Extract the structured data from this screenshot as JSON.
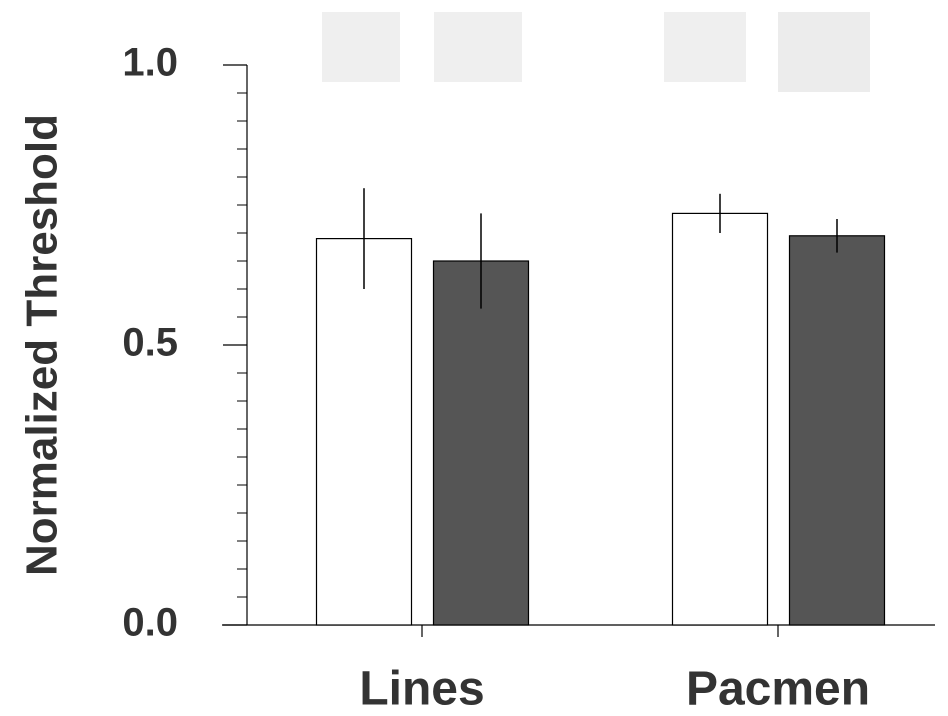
{
  "chart_data": {
    "type": "bar",
    "y_label": "Normalized Threshold",
    "categories": [
      "Lines",
      "Pacmen"
    ],
    "series": [
      {
        "color": "#ffffff",
        "values": [
          0.69,
          0.735
        ],
        "errors": [
          0.09,
          0.035
        ]
      },
      {
        "color": "#555555",
        "values": [
          0.65,
          0.695
        ],
        "errors": [
          0.085,
          0.03
        ]
      }
    ],
    "ylim": [
      0,
      1.0
    ],
    "yticks": [
      {
        "value": 0,
        "label": "0.0"
      },
      0.5,
      {
        "value": 1.0,
        "label": "1.0"
      }
    ],
    "yminor_ticks": [
      0.05,
      0.1,
      0.15,
      0.2,
      0.25,
      0.3,
      0.35,
      0.4,
      0.45,
      0.55,
      0.6,
      0.65,
      0.7,
      0.75,
      0.8,
      0.85,
      0.9,
      0.95
    ]
  }
}
